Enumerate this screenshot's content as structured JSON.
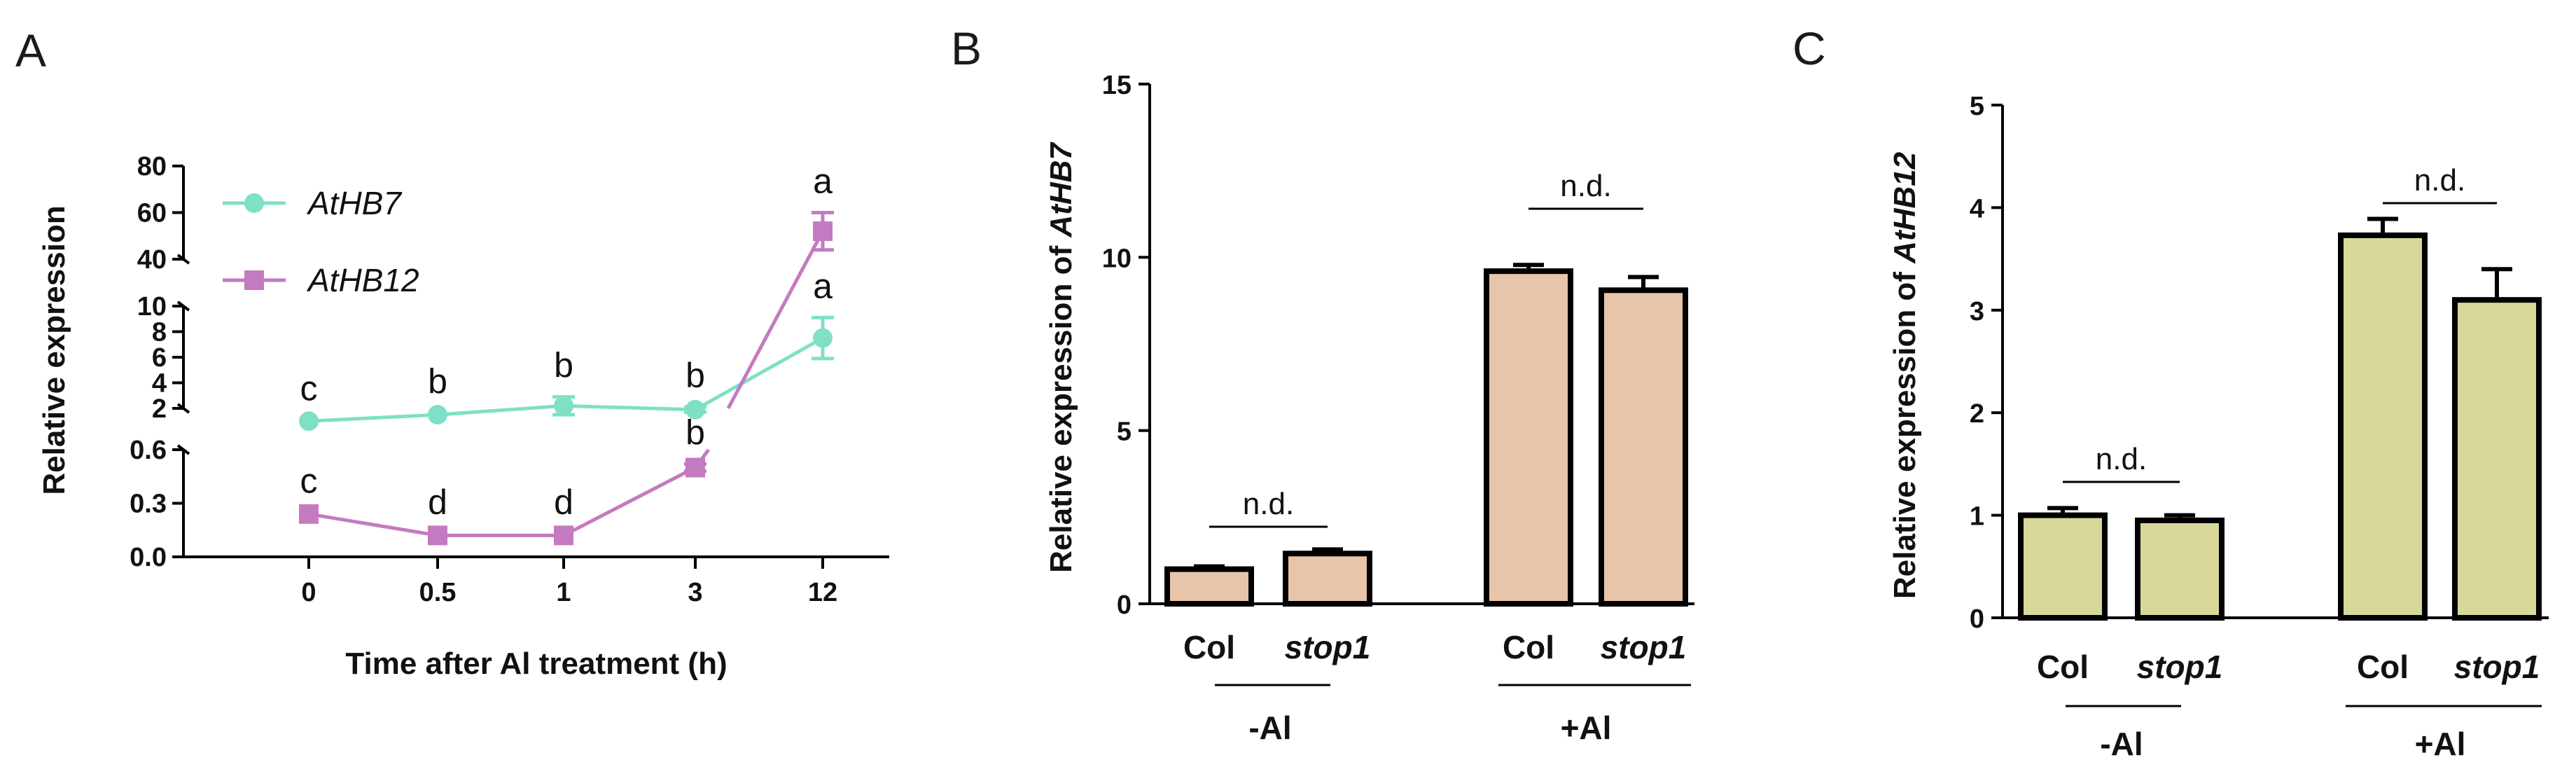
{
  "chart_data": [
    {
      "panel": "A",
      "type": "line",
      "xlabel": "Time after Al treatment (h)",
      "ylabel": "Relative expression",
      "categories": [
        "0",
        "0.5",
        "1",
        "3",
        "12"
      ],
      "y_segments": [
        {
          "ylim": [
            0.0,
            0.6
          ],
          "ticks": [
            "0.0",
            "0.3",
            "0.6"
          ]
        },
        {
          "ylim": [
            2,
            10
          ],
          "ticks": [
            "2",
            "4",
            "6",
            "8",
            "10"
          ]
        },
        {
          "ylim": [
            40,
            80
          ],
          "ticks": [
            "40",
            "60",
            "80"
          ]
        }
      ],
      "series": [
        {
          "name": "AtHB7",
          "color": "#7fe0c6",
          "marker": "circle",
          "values": [
            1.0,
            1.5,
            2.2,
            1.9,
            7.5
          ],
          "errors": [
            0.1,
            0.15,
            0.7,
            0.2,
            1.6
          ],
          "labels": [
            "c",
            "b",
            "b",
            "b",
            "a"
          ]
        },
        {
          "name": "AtHB12",
          "color": "#c47ac0",
          "marker": "square",
          "values": [
            0.24,
            0.12,
            0.12,
            0.5,
            52
          ],
          "errors": [
            0.01,
            0.01,
            0.01,
            0.02,
            8
          ],
          "labels": [
            "c",
            "d",
            "d",
            "b",
            "a"
          ]
        }
      ]
    },
    {
      "panel": "B",
      "type": "bar",
      "ylabel_prefix": "Relative expression of ",
      "ylabel_gene": "AtHB7",
      "categories": [
        "Col",
        "stop1",
        "Col",
        "stop1"
      ],
      "italic": [
        false,
        true,
        false,
        true
      ],
      "groups": [
        "-Al",
        "+Al"
      ],
      "values": [
        1.0,
        1.45,
        9.6,
        9.05
      ],
      "errors": [
        0.08,
        0.12,
        0.18,
        0.38
      ],
      "ylim": [
        0,
        15
      ],
      "ticks": [
        "0",
        "5",
        "10",
        "15"
      ],
      "annotation": "n.d.",
      "color": "#e8c4a8"
    },
    {
      "panel": "C",
      "type": "bar",
      "ylabel_prefix": "Relative expression of ",
      "ylabel_gene": "AtHB12",
      "categories": [
        "Col",
        "stop1",
        "Col",
        "stop1"
      ],
      "italic": [
        false,
        true,
        false,
        true
      ],
      "groups": [
        "-Al",
        "+Al"
      ],
      "values": [
        1.0,
        0.95,
        3.73,
        3.1
      ],
      "errors": [
        0.07,
        0.05,
        0.16,
        0.3
      ],
      "ylim": [
        0,
        5
      ],
      "ticks": [
        "0",
        "1",
        "2",
        "3",
        "4",
        "5"
      ],
      "annotation": "n.d.",
      "color": "#d8d89a"
    }
  ]
}
